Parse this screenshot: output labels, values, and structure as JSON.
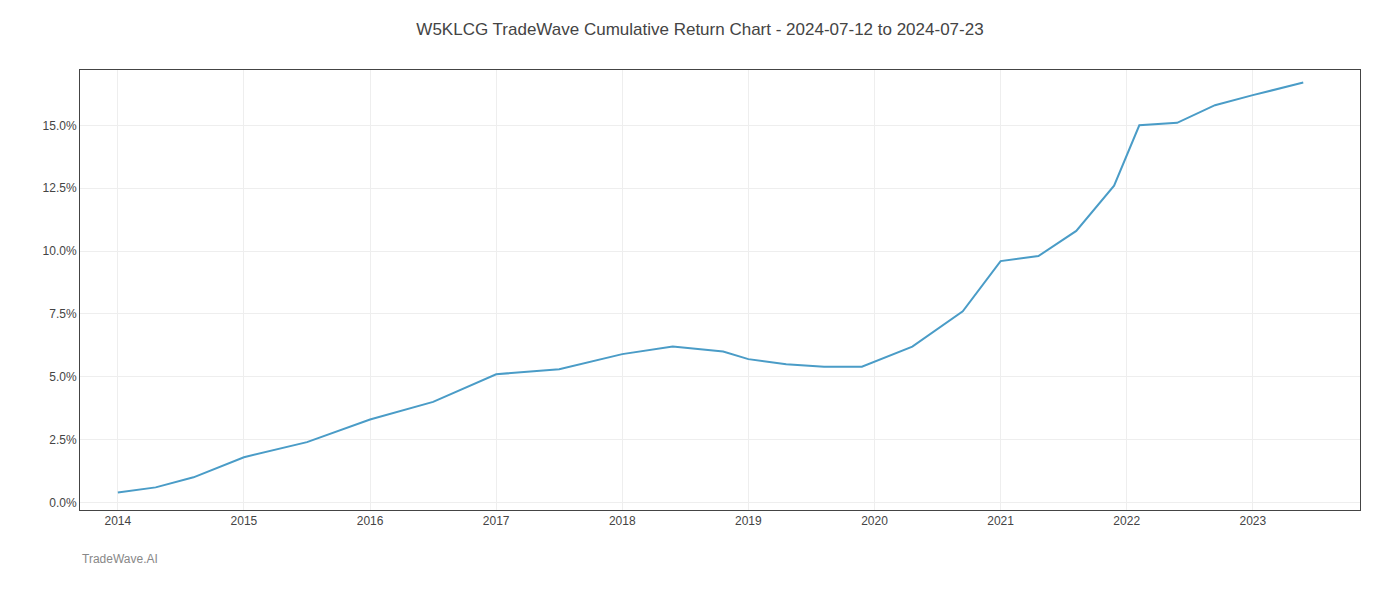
{
  "chart_data": {
    "type": "line",
    "title": "W5KLCG TradeWave Cumulative Return Chart - 2024-07-12 to 2024-07-23",
    "annotations": [
      "TradeWave.AI"
    ],
    "x": [
      2014.0,
      2014.3,
      2014.6,
      2015.0,
      2015.5,
      2016.0,
      2016.5,
      2017.0,
      2017.5,
      2018.0,
      2018.4,
      2018.8,
      2019.0,
      2019.3,
      2019.6,
      2019.9,
      2020.3,
      2020.7,
      2021.0,
      2021.3,
      2021.6,
      2021.9,
      2022.1,
      2022.4,
      2022.7,
      2023.0,
      2023.4
    ],
    "values": [
      0.004,
      0.006,
      0.01,
      0.018,
      0.024,
      0.033,
      0.04,
      0.051,
      0.053,
      0.059,
      0.062,
      0.06,
      0.057,
      0.055,
      0.054,
      0.054,
      0.062,
      0.076,
      0.096,
      0.098,
      0.108,
      0.126,
      0.15,
      0.151,
      0.158,
      0.162,
      0.167
    ],
    "color": "#4a9cc7",
    "xlim": [
      2013.7,
      2023.85
    ],
    "xticks": [
      2014,
      2015,
      2016,
      2017,
      2018,
      2019,
      2020,
      2021,
      2022,
      2023
    ],
    "ylim": [
      -0.003,
      0.172
    ],
    "yticks": [
      {
        "value": 0.0,
        "label": "0.0%"
      },
      {
        "value": 0.025,
        "label": "2.5%"
      },
      {
        "value": 0.05,
        "label": "5.0%"
      },
      {
        "value": 0.075,
        "label": "7.5%"
      },
      {
        "value": 0.1,
        "label": "10.0%"
      },
      {
        "value": 0.125,
        "label": "12.5%"
      },
      {
        "value": 0.15,
        "label": "15.0%"
      }
    ],
    "grid": true
  }
}
